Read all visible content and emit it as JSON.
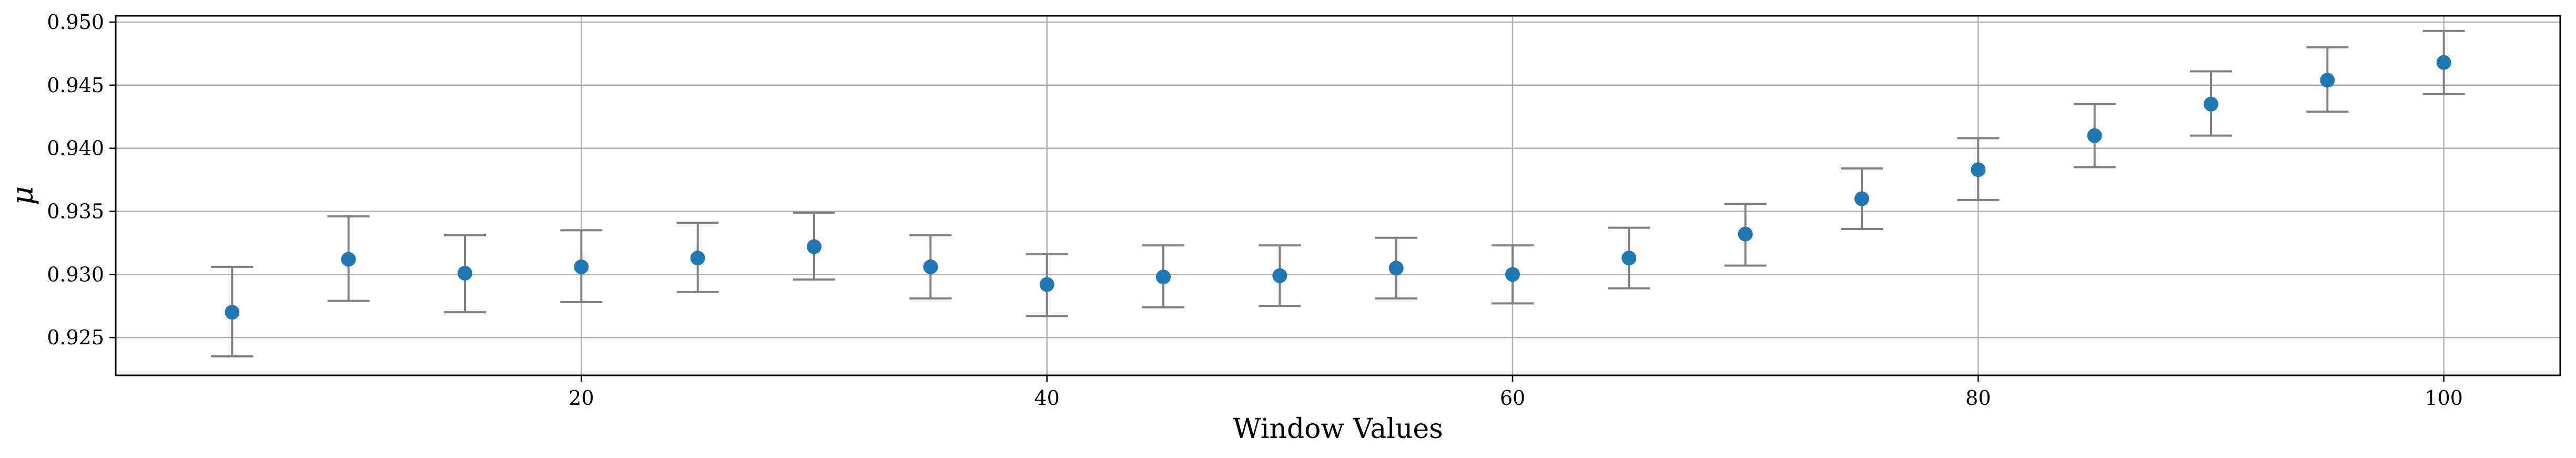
{
  "chart_data": {
    "type": "scatter",
    "title": "",
    "xlabel": "Window Values",
    "ylabel": "μ",
    "xlim": [
      0,
      105
    ],
    "ylim": [
      0.922,
      0.9505
    ],
    "xticks": [
      20,
      40,
      60,
      80,
      100
    ],
    "yticks": [
      0.925,
      0.93,
      0.935,
      0.94,
      0.945,
      0.95
    ],
    "xtick_labels": [
      "20",
      "40",
      "60",
      "80",
      "100"
    ],
    "ytick_labels": [
      "0.925",
      "0.930",
      "0.935",
      "0.940",
      "0.945",
      "0.950"
    ],
    "grid": true,
    "legend": "none",
    "series": [
      {
        "marker_color": "#1f77b4",
        "errorbar_color": "#808080",
        "x": [
          5,
          10,
          15,
          20,
          25,
          30,
          35,
          40,
          45,
          50,
          55,
          60,
          65,
          70,
          75,
          80,
          85,
          90,
          95,
          100
        ],
        "y": [
          0.927,
          0.9312,
          0.9301,
          0.9306,
          0.9313,
          0.9322,
          0.9306,
          0.9292,
          0.9298,
          0.9299,
          0.9305,
          0.93,
          0.9313,
          0.9332,
          0.936,
          0.9383,
          0.941,
          0.9435,
          0.9454,
          0.9468
        ],
        "yerr_low": [
          0.9235,
          0.9279,
          0.927,
          0.9278,
          0.9286,
          0.9296,
          0.9281,
          0.9267,
          0.9274,
          0.9275,
          0.9281,
          0.9277,
          0.9289,
          0.9307,
          0.9336,
          0.9359,
          0.9385,
          0.941,
          0.9429,
          0.9443
        ],
        "yerr_high": [
          0.9306,
          0.9346,
          0.9331,
          0.9335,
          0.9341,
          0.9349,
          0.9331,
          0.9316,
          0.9323,
          0.9323,
          0.9329,
          0.9323,
          0.9337,
          0.9356,
          0.9384,
          0.9408,
          0.9435,
          0.9461,
          0.948,
          0.9493
        ]
      }
    ]
  }
}
